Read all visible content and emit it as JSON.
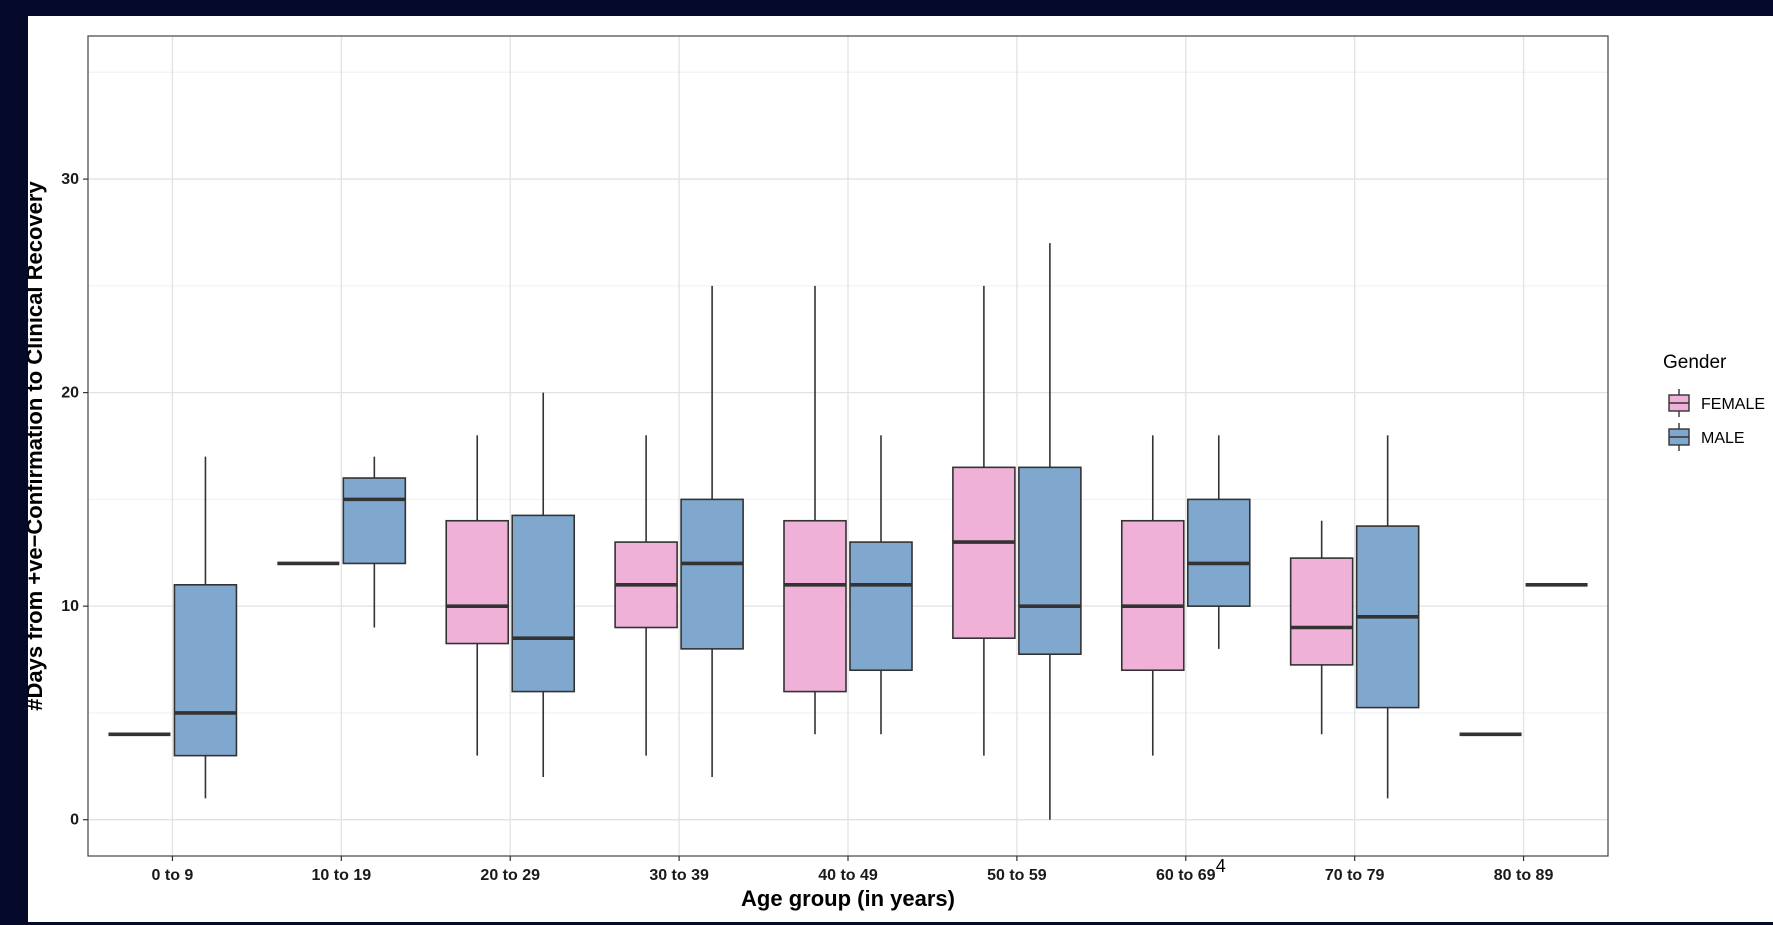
{
  "chart_data": {
    "type": "boxplot",
    "xlabel": "Age group (in years)",
    "ylabel": "#Days from +ve−Confirmation to Clinical Recovery",
    "ylim": [
      -1.7,
      36.7
    ],
    "yticks": [
      0,
      10,
      20,
      30
    ],
    "grid": true,
    "legend": {
      "title": "Gender",
      "position": "right"
    },
    "categories": [
      "0 to 9",
      "10 to 19",
      "20 to 29",
      "30 to 39",
      "40 to 49",
      "50 to 59",
      "60 to 69",
      "70 to 79",
      "80 to 89"
    ],
    "series": [
      {
        "name": "FEMALE",
        "color": "#efb1d8",
        "boxes": [
          {
            "category": "0 to 9",
            "min": 4,
            "q1": 4,
            "median": 4,
            "q3": 4,
            "max": 4
          },
          {
            "category": "10 to 19",
            "min": 12,
            "q1": 12,
            "median": 12,
            "q3": 12,
            "max": 12
          },
          {
            "category": "20 to 29",
            "min": 3,
            "q1": 8.25,
            "median": 10,
            "q3": 14,
            "max": 18
          },
          {
            "category": "30 to 39",
            "min": 3,
            "q1": 9,
            "median": 11,
            "q3": 13,
            "max": 18
          },
          {
            "category": "40 to 49",
            "min": 4,
            "q1": 6,
            "median": 11,
            "q3": 14,
            "max": 25
          },
          {
            "category": "50 to 59",
            "min": 3,
            "q1": 8.5,
            "median": 13,
            "q3": 16.5,
            "max": 25
          },
          {
            "category": "60 to 69",
            "min": 3,
            "q1": 7,
            "median": 10,
            "q3": 14,
            "max": 18
          },
          {
            "category": "70 to 79",
            "min": 4,
            "q1": 7.25,
            "median": 9,
            "q3": 12.25,
            "max": 14
          },
          {
            "category": "80 to 89",
            "min": 4,
            "q1": 4,
            "median": 4,
            "q3": 4,
            "max": 4
          }
        ]
      },
      {
        "name": "MALE",
        "color": "#80a8cf",
        "boxes": [
          {
            "category": "0 to 9",
            "min": 1,
            "q1": 3,
            "median": 5,
            "q3": 11,
            "max": 17
          },
          {
            "category": "10 to 19",
            "min": 9,
            "q1": 12,
            "median": 15,
            "q3": 16,
            "max": 17
          },
          {
            "category": "20 to 29",
            "min": 2,
            "q1": 6,
            "median": 8.5,
            "q3": 14.25,
            "max": 20
          },
          {
            "category": "30 to 39",
            "min": 2,
            "q1": 8,
            "median": 12,
            "q3": 15,
            "max": 25
          },
          {
            "category": "40 to 49",
            "min": 4,
            "q1": 7,
            "median": 11,
            "q3": 13,
            "max": 18
          },
          {
            "category": "50 to 59",
            "min": 0,
            "q1": 7.75,
            "median": 10,
            "q3": 16.5,
            "max": 27
          },
          {
            "category": "60 to 69",
            "min": 8,
            "q1": 10,
            "median": 12,
            "q3": 15,
            "max": 18
          },
          {
            "category": "70 to 79",
            "min": 1,
            "q1": 5.25,
            "median": 9.5,
            "q3": 13.75,
            "max": 18
          },
          {
            "category": "80 to 89",
            "min": 11,
            "q1": 11,
            "median": 11,
            "q3": 11,
            "max": 11
          }
        ]
      }
    ],
    "annotations": [
      {
        "text": "4",
        "near_category": "60 to 69"
      }
    ]
  }
}
